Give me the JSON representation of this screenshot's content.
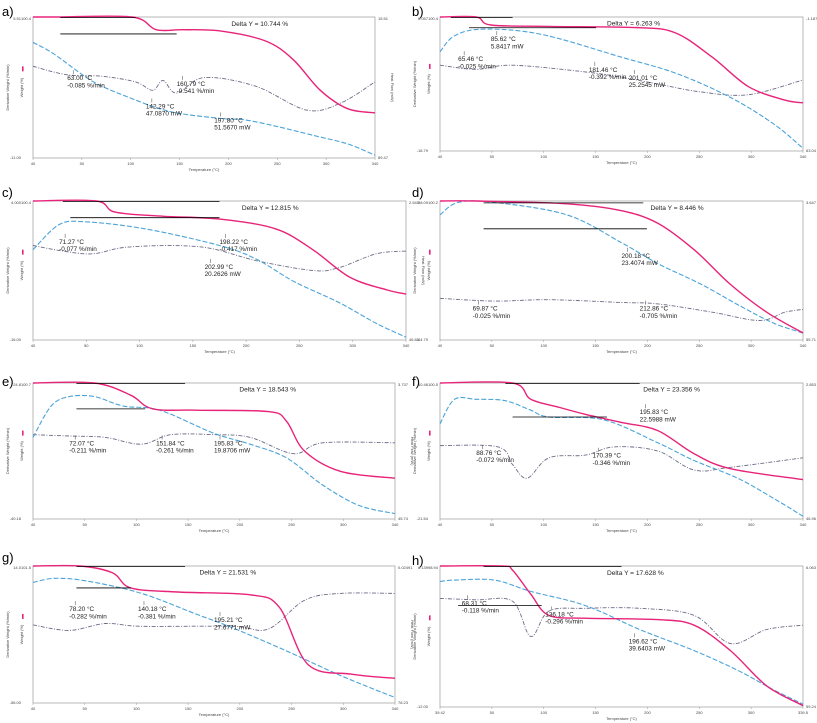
{
  "colors": {
    "weight": "#e8237a",
    "heatflow": "#4aa3d8",
    "derivative": "#6a6a86",
    "frame": "#9a9a9a",
    "guide": "#000000"
  },
  "chart_data": [
    {
      "panel": "a)",
      "type": "line",
      "xlabel": "Temperature (°C)",
      "ylabel_left": "Weight (%)",
      "ylabel_left_outer": "Derivative Weight (%/min)",
      "ylabel_right": "Heat Flow (mW)",
      "xlim": [
        40,
        340
      ],
      "x_ticks": [
        "40",
        "50",
        "100",
        "150",
        "200",
        "250",
        "300",
        "340"
      ],
      "left_top_labels": [
        "5.51",
        "100.4"
      ],
      "left_bottom_label": "-11.00",
      "right_top_label": "15.51",
      "right_bottom_label": "89.47",
      "delta_label": "Delta Y = 10.744 %",
      "annotations": [
        {
          "label": "63.00 °C\n-0.085 %/min"
        },
        {
          "label": "160.79 °C\n-0.541 %/min"
        },
        {
          "label": "142.29 °C\n47.0870 mW"
        },
        {
          "label": "197.80 °C\n51.5670 mW"
        }
      ]
    },
    {
      "panel": "b)",
      "type": "line",
      "xlabel": "Temperature (°C)",
      "ylabel_left": "Weight (%)",
      "ylabel_left_outer": "Derivative Weight (%/min)",
      "ylabel_right": "Heat Flow (mW)",
      "xlim": [
        40,
        340
      ],
      "x_ticks": [
        "40",
        "50",
        "100",
        "150",
        "200",
        "250",
        "300",
        "340"
      ],
      "left_top_labels": [
        "6.057",
        "100.4"
      ],
      "left_bottom_label": "-16.79",
      "right_top_label": "-1.187",
      "right_bottom_label": "63.04",
      "delta_label": "Delta Y = 6.263 %",
      "annotations": [
        {
          "label": "65.46 °C\n-0.025 %/min"
        },
        {
          "label": "85.62 °C\n5.8417 mW"
        },
        {
          "label": "181.46 °C\n-0.392 %/min"
        },
        {
          "label": "201.01 °C\n25.2545 mW"
        }
      ]
    },
    {
      "panel": "c)",
      "type": "line",
      "xlabel": "Temperature (°C)",
      "ylabel_left": "Weight (%)",
      "ylabel_left_outer": "Derivative Weight (%/min)",
      "ylabel_right": "Heat Flow (mW)",
      "xlim": [
        40,
        340
      ],
      "x_ticks": [
        "40",
        "50",
        "100",
        "150",
        "200",
        "250",
        "300",
        "340"
      ],
      "left_top_labels": [
        "4.000",
        "100.4"
      ],
      "left_bottom_label": "-16.00",
      "right_top_label": "2.545",
      "right_bottom_label": "46.85",
      "delta_label": "Delta Y = 12.815 %",
      "annotations": [
        {
          "label": "71.27 °C\n-0.077 %/min"
        },
        {
          "label": "198.22 °C\n-0.417 %/min"
        },
        {
          "label": "202.99 °C\n20.2626 mW"
        }
      ]
    },
    {
      "panel": "d)",
      "type": "line",
      "xlabel": "Temperature (°C)",
      "ylabel_left": "Weight (%)",
      "ylabel_left_outer": "Derivative Weight (%/min)",
      "ylabel_right": "Heat Flow (mW)",
      "xlim": [
        40,
        340
      ],
      "x_ticks": [
        "40",
        "50",
        "100",
        "150",
        "200",
        "250",
        "300",
        "340"
      ],
      "left_top_labels": [
        "38.09",
        "100.2"
      ],
      "left_bottom_label": "-44.79",
      "right_top_label": "3.647",
      "right_bottom_label": "55.71",
      "delta_label": "Delta Y = 8.446 %",
      "annotations": [
        {
          "label": "200.18 °C\n23.4074 mW"
        },
        {
          "label": "69.87 °C\n-0.025 %/min"
        },
        {
          "label": "212.86 °C\n-0.705 %/min"
        }
      ]
    },
    {
      "panel": "e)",
      "type": "line",
      "xlabel": "Temperature (°C)",
      "ylabel_left": "Weight (%)",
      "ylabel_left_outer": "Derivative Weight (%/min)",
      "ylabel_right": "Heat Flow (mW)",
      "xlim": [
        40,
        340
      ],
      "x_ticks": [
        "40",
        "50",
        "100",
        "150",
        "200",
        "250",
        "300",
        "340"
      ],
      "left_top_labels": [
        "24.8",
        "100.7"
      ],
      "left_bottom_label": "-40.18",
      "right_top_label": "3.737",
      "right_bottom_label": "45.74",
      "delta_label": "Delta Y = 18.543 %",
      "annotations": [
        {
          "label": "72.07 °C\n-0.211 %/min"
        },
        {
          "label": "151.84 °C\n-0.261 %/min"
        },
        {
          "label": "195.83 °C\n19.8706 mW"
        }
      ]
    },
    {
      "panel": "f)",
      "type": "line",
      "xlabel": "Temperature (°C)",
      "ylabel_left": "Weight (%)",
      "ylabel_left_outer": "Derivative Weight (%/min)",
      "ylabel_right": "Heat Flow (mW)",
      "xlim": [
        40,
        340
      ],
      "x_ticks": [
        "40",
        "50",
        "100",
        "150",
        "200",
        "250",
        "300",
        "340"
      ],
      "left_top_labels": [
        "10.46",
        "100.5"
      ],
      "left_bottom_label": "-21.54",
      "right_top_label": "2.853",
      "right_bottom_label": "46.96",
      "delta_label": "Delta Y = 23.356 %",
      "annotations": [
        {
          "label": "195.83 °C\n22.5988 mW"
        },
        {
          "label": "88.76 °C\n-0.072 %/min"
        },
        {
          "label": "170.39 °C\n-0.346 %/min"
        }
      ]
    },
    {
      "panel": "g)",
      "type": "line",
      "xlabel": "Temperature (°C)",
      "ylabel_left": "Weight (%)",
      "ylabel_left_outer": "Derivative Weight (%/min)",
      "ylabel_right": "Heat Flow (mW)",
      "xlim": [
        40,
        340
      ],
      "x_ticks": [
        "40",
        "50",
        "100",
        "150",
        "200",
        "250",
        "300",
        "340"
      ],
      "left_top_labels": [
        "14.0",
        "101.5"
      ],
      "left_bottom_label": "-56.00",
      "right_top_label": "0.02491",
      "right_bottom_label": "78.23",
      "delta_label": "Delta Y = 21.531 %",
      "annotations": [
        {
          "label": "78.20 °C\n-0.282 %/min"
        },
        {
          "label": "140.18 °C\n-0.381 %/min"
        },
        {
          "label": "195.21 °C\n27.6771 mW"
        }
      ]
    },
    {
      "panel": "h)",
      "type": "line",
      "xlabel": "Temperature (°C)",
      "ylabel_left": "Weight (%)",
      "ylabel_left_outer": "Derivative Weight (%/min)",
      "ylabel_right": "Heat Flow (mW)",
      "xlim": [
        39.42,
        339.5
      ],
      "x_ticks": [
        "39.42",
        "50",
        "100",
        "150",
        "200",
        "250",
        "300",
        "339.5"
      ],
      "left_top_labels": [
        "6.139",
        "98.94"
      ],
      "left_bottom_label": "-12.00",
      "right_top_label": "6.063",
      "right_bottom_label": "59.24",
      "delta_label": "Delta Y = 17.628 %",
      "annotations": [
        {
          "label": "68.31 °C\n-0.118 %/min"
        },
        {
          "label": "136.18 °C\n-0.296 %/min"
        },
        {
          "label": "196.62 °C\n39.6403 mW"
        }
      ]
    }
  ]
}
